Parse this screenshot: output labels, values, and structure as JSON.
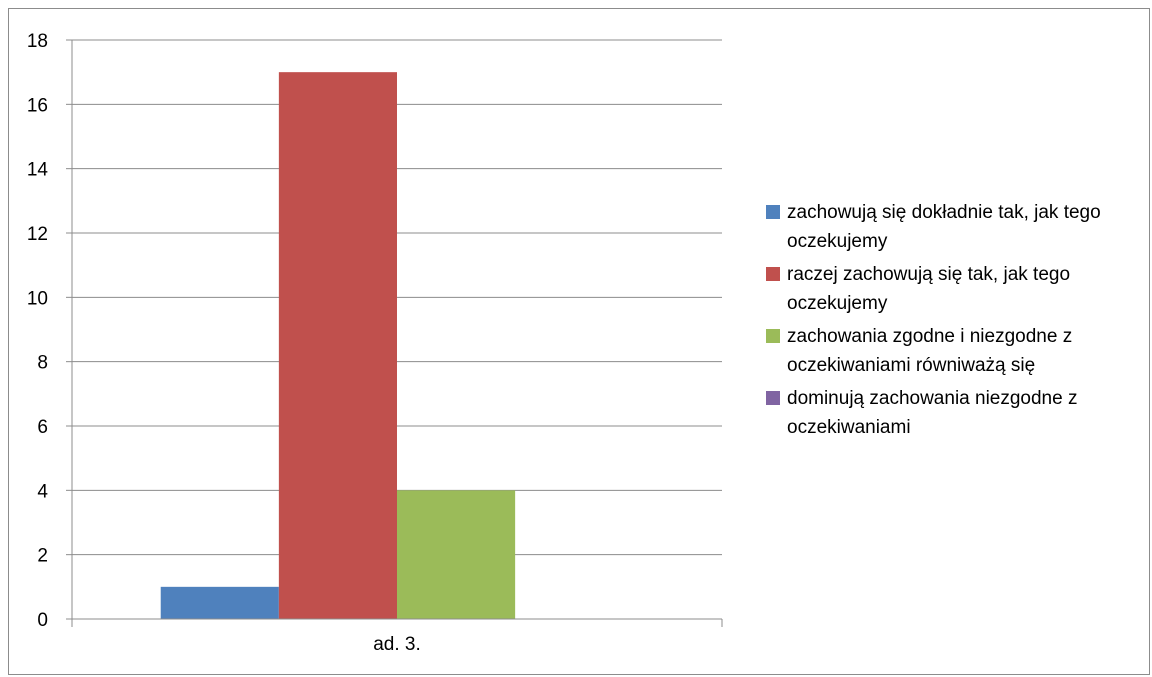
{
  "chart_data": {
    "type": "bar",
    "categories": [
      "ad. 3."
    ],
    "series": [
      {
        "name": "zachowują się dokładnie tak, jak tego oczekujemy",
        "values": [
          1
        ],
        "color": "#4F81BD"
      },
      {
        "name": "raczej zachowują się tak, jak tego oczekujemy",
        "values": [
          17
        ],
        "color": "#C0504D"
      },
      {
        "name": "zachowania zgodne i niezgodne z oczekiwaniami równiważą się",
        "values": [
          4
        ],
        "color": "#9BBB59"
      },
      {
        "name": "dominują zachowania niezgodne z oczekiwaniami",
        "values": [
          0
        ],
        "color": "#8064A2"
      }
    ],
    "ylim": [
      0,
      18
    ],
    "yticks": [
      "0",
      "2",
      "4",
      "6",
      "8",
      "10",
      "12",
      "14",
      "16",
      "18"
    ],
    "grid": true,
    "legend_position": "right"
  }
}
